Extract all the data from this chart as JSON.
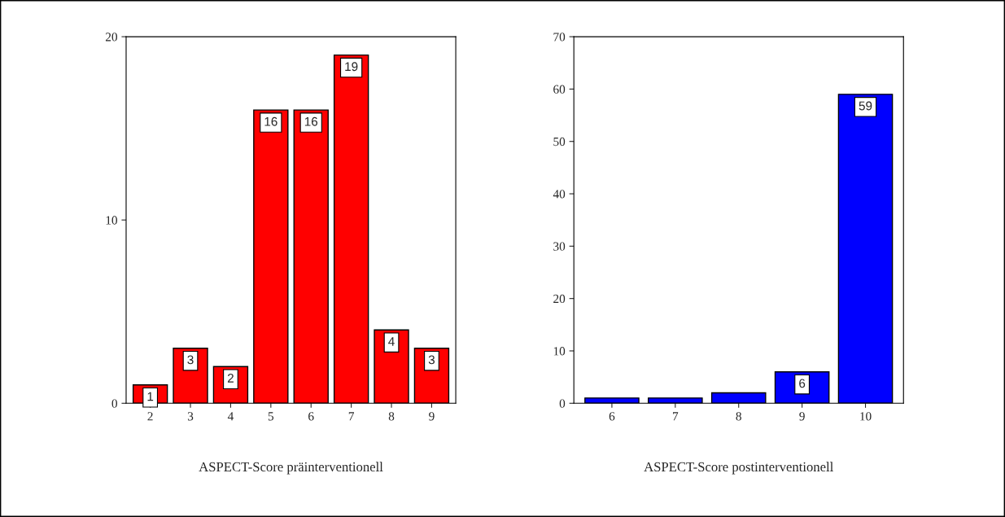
{
  "chart_data": [
    {
      "type": "bar",
      "xlabel": "ASPECT-Score präinterventionell",
      "categories": [
        "2",
        "3",
        "4",
        "5",
        "6",
        "7",
        "8",
        "9"
      ],
      "values": [
        1,
        3,
        2,
        16,
        16,
        19,
        4,
        3
      ],
      "color": "#ff0000",
      "ylim": [
        0,
        20
      ],
      "yticks": [
        0,
        10,
        20
      ],
      "data_labels": true,
      "grid": false,
      "legend": false
    },
    {
      "type": "bar",
      "xlabel": "ASPECT-Score postinterventionell",
      "categories": [
        "6",
        "7",
        "8",
        "9",
        "10"
      ],
      "values": [
        1,
        1,
        2,
        6,
        59
      ],
      "color": "#0000ff",
      "ylim": [
        0,
        70
      ],
      "yticks": [
        0,
        10,
        20,
        30,
        40,
        50,
        60,
        70
      ],
      "value_labels": [
        null,
        null,
        null,
        "6",
        "59"
      ],
      "grid": false,
      "legend": false
    }
  ]
}
